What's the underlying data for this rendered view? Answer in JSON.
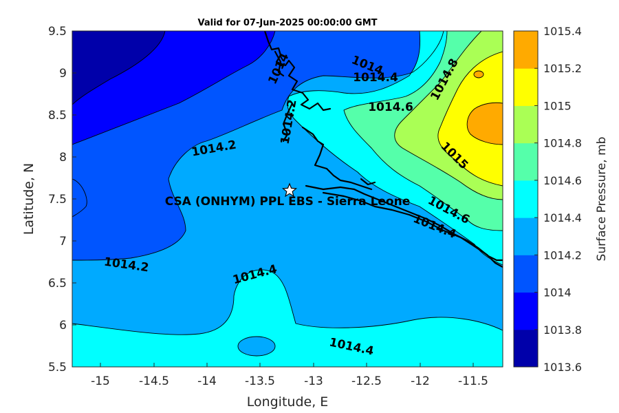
{
  "title": "Valid for 07-Jun-2025 00:00:00 GMT",
  "x_axis": {
    "label": "Longitude, E",
    "ticks": [
      "-15",
      "-14.5",
      "-14",
      "-13.5",
      "-13",
      "-12.5",
      "-12",
      "-11.5"
    ]
  },
  "y_axis": {
    "label": "Latitude, N",
    "ticks": [
      "5.5",
      "6",
      "6.5",
      "7",
      "7.5",
      "8",
      "8.5",
      "9",
      "9.5"
    ]
  },
  "colorbar": {
    "label": "Surface Pressure, mb",
    "levels": [
      "1013.6",
      "1013.8",
      "1014",
      "1014.2",
      "1014.4",
      "1014.6",
      "1014.8",
      "1015",
      "1015.2",
      "1015.4"
    ],
    "colors": [
      "#0000aa",
      "#0000ff",
      "#0055ff",
      "#00aaff",
      "#00ffff",
      "#55ffaa",
      "#aaff55",
      "#ffff00",
      "#ffaa00",
      "#ff5500"
    ]
  },
  "site": {
    "label": "CSA (ONHYM) PPL EBS  - Sierra Leone",
    "marker_icon": "star-icon"
  },
  "contour_labels": {
    "c1": "1014.2",
    "c2": "1014.2",
    "c3": "1014.4",
    "c4": "1014.4",
    "c5": "1014.6",
    "c6": "1014.4",
    "c7": "1014.6",
    "c8": "1015",
    "c9": "1014.8",
    "c10": "1014.2",
    "c11": "1014",
    "c12": "1014",
    "c13": "1014.4"
  }
}
